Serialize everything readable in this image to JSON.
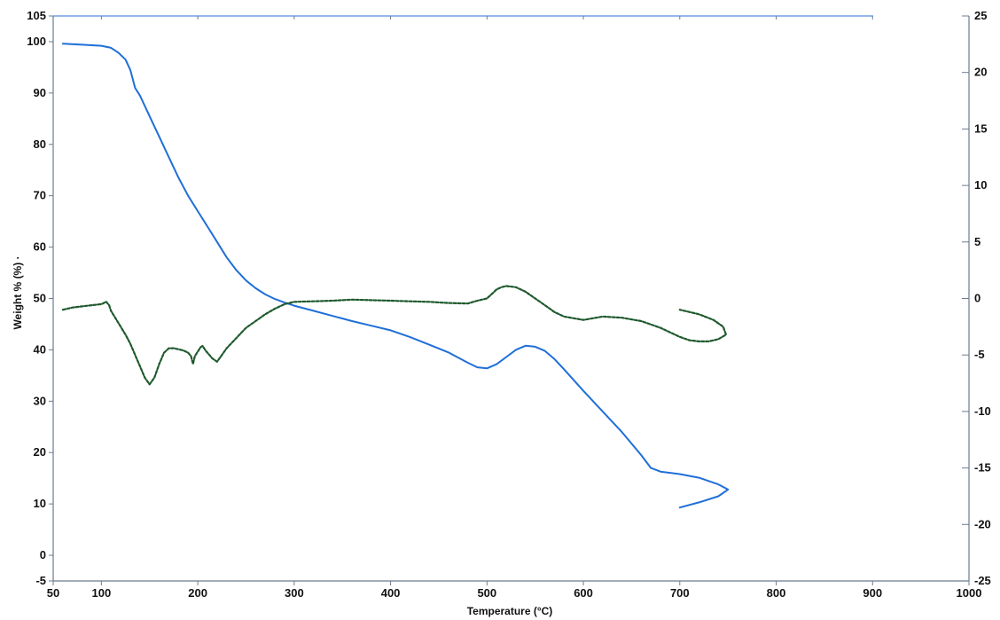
{
  "chart_data": {
    "type": "line",
    "title": "",
    "xlabel": "Temperature (°C)",
    "ylabel": "Weight % (%) ·",
    "y2label": "",
    "xlim": [
      50,
      1000
    ],
    "ylim": [
      -5,
      105
    ],
    "y2lim": [
      -25,
      25
    ],
    "grid": false,
    "legend": "none",
    "x_ticks": [
      50,
      100,
      200,
      300,
      400,
      500,
      600,
      700,
      800,
      900,
      1000
    ],
    "y_ticks": [
      -5,
      0,
      10,
      20,
      30,
      40,
      50,
      60,
      70,
      80,
      90,
      100,
      105
    ],
    "y2_ticks": [
      -25,
      -20,
      -15,
      -10,
      -5,
      0,
      5,
      10,
      15,
      20,
      25
    ],
    "series": [
      {
        "axis": "left",
        "style": "solid",
        "color": "#1f6fd8",
        "x": [
          60,
          80,
          100,
          110,
          118,
          125,
          130,
          135,
          140,
          150,
          160,
          170,
          180,
          190,
          200,
          210,
          220,
          230,
          240,
          250,
          260,
          270,
          280,
          290,
          300,
          320,
          340,
          360,
          380,
          400,
          420,
          440,
          460,
          480,
          490,
          500,
          510,
          520,
          530,
          540,
          550,
          560,
          570,
          580,
          600,
          620,
          640,
          660,
          670,
          680,
          700,
          720,
          740,
          750,
          740,
          720,
          700
        ],
        "y": [
          99.6,
          99.4,
          99.2,
          98.8,
          97.8,
          96.5,
          94.5,
          91,
          89.5,
          85.5,
          81.5,
          77.5,
          73.5,
          70,
          67,
          64,
          61,
          58,
          55.5,
          53.5,
          52,
          50.8,
          49.9,
          49.2,
          48.6,
          47.6,
          46.6,
          45.6,
          44.7,
          43.8,
          42.5,
          41,
          39.5,
          37.5,
          36.6,
          36.4,
          37.2,
          38.6,
          40,
          40.8,
          40.6,
          39.8,
          38.2,
          36.2,
          32,
          28,
          24,
          19.5,
          17,
          16.3,
          15.8,
          15.1,
          13.8,
          12.8,
          11.5,
          10.3,
          9.3
        ]
      },
      {
        "axis": "right",
        "style": "dashed",
        "color": "#1f5a2e",
        "x": [
          60,
          70,
          80,
          90,
          100,
          105,
          108,
          110,
          115,
          120,
          125,
          130,
          135,
          140,
          145,
          150,
          155,
          160,
          165,
          170,
          175,
          180,
          185,
          190,
          193,
          195,
          197,
          200,
          203,
          205,
          208,
          212,
          215,
          220,
          225,
          230,
          240,
          250,
          260,
          270,
          280,
          290,
          300,
          320,
          340,
          360,
          380,
          400,
          420,
          440,
          460,
          480,
          490,
          500,
          505,
          510,
          515,
          520,
          530,
          540,
          550,
          560,
          570,
          580,
          600,
          620,
          640,
          660,
          670,
          680,
          690,
          700,
          710,
          720,
          730,
          740,
          748,
          745,
          735,
          720,
          700
        ],
        "y": [
          -1.0,
          -0.8,
          -0.7,
          -0.6,
          -0.5,
          -0.3,
          -0.6,
          -1.1,
          -1.8,
          -2.5,
          -3.2,
          -4.0,
          -5.0,
          -6.0,
          -7.0,
          -7.6,
          -7.0,
          -5.8,
          -4.8,
          -4.4,
          -4.4,
          -4.5,
          -4.6,
          -4.8,
          -5.1,
          -5.8,
          -5.1,
          -4.7,
          -4.3,
          -4.2,
          -4.6,
          -5.0,
          -5.3,
          -5.6,
          -5.0,
          -4.4,
          -3.5,
          -2.6,
          -2.0,
          -1.4,
          -0.9,
          -0.5,
          -0.3,
          -0.25,
          -0.2,
          -0.1,
          -0.15,
          -0.2,
          -0.25,
          -0.3,
          -0.4,
          -0.45,
          -0.2,
          0.0,
          0.4,
          0.8,
          1.0,
          1.1,
          1.0,
          0.6,
          0.0,
          -0.6,
          -1.2,
          -1.6,
          -1.9,
          -1.6,
          -1.7,
          -2.0,
          -2.3,
          -2.6,
          -3.0,
          -3.4,
          -3.7,
          -3.8,
          -3.8,
          -3.6,
          -3.2,
          -2.5,
          -1.9,
          -1.4,
          -1.0
        ]
      }
    ]
  }
}
